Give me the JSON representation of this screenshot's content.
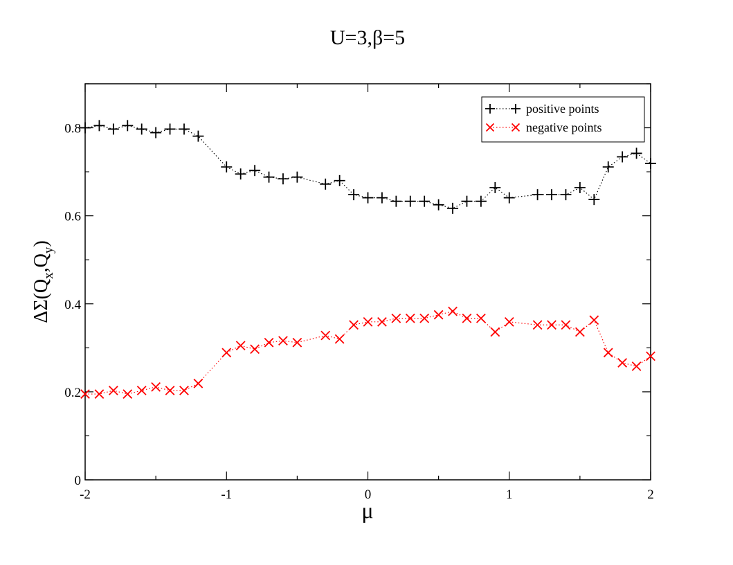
{
  "chart_data": {
    "type": "line",
    "title": "U=3,β=5",
    "xlabel": "μ",
    "ylabel": {
      "prefix": "ΔΣ(Q",
      "sub1": "x",
      "mid": ",Q",
      "sub2": "y",
      "suffix": ")"
    },
    "xlim": [
      -2,
      2
    ],
    "ylim": [
      0,
      0.9
    ],
    "x_ticks": [
      -2,
      -1,
      0,
      1,
      2
    ],
    "x_tick_labels": [
      "-2",
      "-1",
      "0",
      "1",
      "2"
    ],
    "y_ticks": [
      0,
      0.2,
      0.4,
      0.6,
      0.8
    ],
    "y_tick_labels": [
      "0",
      "0.2",
      "0.4",
      "0.6",
      "0.8"
    ],
    "grid": false,
    "legend_position": "top-right",
    "series": [
      {
        "name": "positive points",
        "color": "#000000",
        "marker": "plus",
        "line_style": "dotted",
        "points": [
          [
            -2.0,
            0.8
          ],
          [
            -1.9,
            0.805
          ],
          [
            -1.8,
            0.797
          ],
          [
            -1.7,
            0.805
          ],
          [
            -1.6,
            0.797
          ],
          [
            -1.5,
            0.789
          ],
          [
            -1.4,
            0.797
          ],
          [
            -1.3,
            0.797
          ],
          [
            -1.2,
            0.781
          ],
          [
            -1.0,
            0.711
          ],
          [
            -0.9,
            0.695
          ],
          [
            -0.8,
            0.703
          ],
          [
            -0.7,
            0.688
          ],
          [
            -0.6,
            0.684
          ],
          [
            -0.5,
            0.688
          ],
          [
            -0.3,
            0.672
          ],
          [
            -0.2,
            0.68
          ],
          [
            -0.1,
            0.648
          ],
          [
            0.0,
            0.641
          ],
          [
            0.1,
            0.641
          ],
          [
            0.2,
            0.633
          ],
          [
            0.3,
            0.633
          ],
          [
            0.4,
            0.633
          ],
          [
            0.5,
            0.625
          ],
          [
            0.6,
            0.617
          ],
          [
            0.7,
            0.633
          ],
          [
            0.8,
            0.633
          ],
          [
            0.9,
            0.664
          ],
          [
            1.0,
            0.641
          ],
          [
            1.2,
            0.648
          ],
          [
            1.3,
            0.648
          ],
          [
            1.4,
            0.648
          ],
          [
            1.5,
            0.664
          ],
          [
            1.6,
            0.637
          ],
          [
            1.7,
            0.711
          ],
          [
            1.8,
            0.734
          ],
          [
            1.9,
            0.742
          ],
          [
            2.0,
            0.719
          ]
        ]
      },
      {
        "name": "negative points",
        "color": "#ff0000",
        "marker": "x",
        "line_style": "dotted",
        "points": [
          [
            -2.0,
            0.195
          ],
          [
            -1.9,
            0.195
          ],
          [
            -1.8,
            0.203
          ],
          [
            -1.7,
            0.195
          ],
          [
            -1.6,
            0.203
          ],
          [
            -1.5,
            0.211
          ],
          [
            -1.4,
            0.203
          ],
          [
            -1.3,
            0.203
          ],
          [
            -1.2,
            0.219
          ],
          [
            -1.0,
            0.289
          ],
          [
            -0.9,
            0.305
          ],
          [
            -0.8,
            0.297
          ],
          [
            -0.7,
            0.312
          ],
          [
            -0.6,
            0.316
          ],
          [
            -0.5,
            0.312
          ],
          [
            -0.3,
            0.328
          ],
          [
            -0.2,
            0.32
          ],
          [
            -0.1,
            0.352
          ],
          [
            0.0,
            0.359
          ],
          [
            0.1,
            0.359
          ],
          [
            0.2,
            0.367
          ],
          [
            0.3,
            0.367
          ],
          [
            0.4,
            0.367
          ],
          [
            0.5,
            0.375
          ],
          [
            0.6,
            0.383
          ],
          [
            0.7,
            0.367
          ],
          [
            0.8,
            0.367
          ],
          [
            0.9,
            0.336
          ],
          [
            1.0,
            0.359
          ],
          [
            1.2,
            0.352
          ],
          [
            1.3,
            0.352
          ],
          [
            1.4,
            0.352
          ],
          [
            1.5,
            0.336
          ],
          [
            1.6,
            0.363
          ],
          [
            1.7,
            0.289
          ],
          [
            1.8,
            0.266
          ],
          [
            1.9,
            0.258
          ],
          [
            2.0,
            0.281
          ]
        ]
      }
    ]
  }
}
